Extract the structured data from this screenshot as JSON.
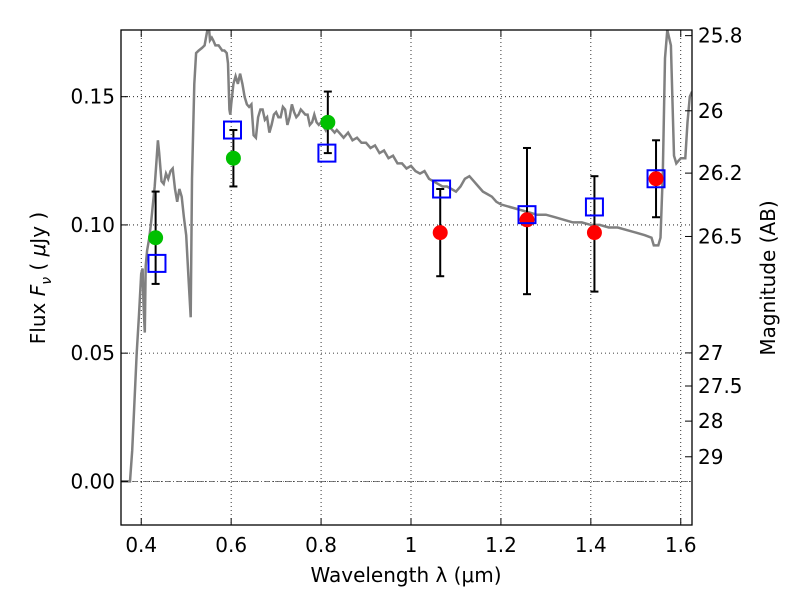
{
  "chart_data": {
    "type": "scatter",
    "xlabel": "Wavelength  λ (μm)",
    "ylabel_parts": [
      "Flux  ",
      "F",
      "ν",
      "  ( ",
      "μ",
      "Jy )"
    ],
    "ylabel_right": "Magnitude (AB)",
    "xlim": [
      0.355,
      1.625
    ],
    "ylim": [
      -0.017,
      0.176
    ],
    "grid": true,
    "x_ticks": [
      0.4,
      0.6,
      0.8,
      1.0,
      1.2,
      1.4,
      1.6
    ],
    "x_tick_labels": [
      "0.4",
      "0.6",
      "0.8",
      "1",
      "1.2",
      "1.4",
      "1.6"
    ],
    "y_ticks": [
      0.0,
      0.05,
      0.1,
      0.15
    ],
    "y_tick_labels": [
      "0.00",
      "0.05",
      "0.10",
      "0.15"
    ],
    "right_axis_magnitudes": [
      "25.8",
      "26",
      "26.2",
      "26.5",
      "27",
      "27.5",
      "28",
      "29"
    ],
    "right_axis_flux_positions": [
      0.1738,
      0.1445,
      0.1202,
      0.0955,
      0.0501,
      0.0372,
      0.0235,
      0.0096
    ],
    "model_spectrum": {
      "name": "model",
      "color": "#808080",
      "points": [
        [
          0.355,
          0.0
        ],
        [
          0.37,
          0.0
        ],
        [
          0.375,
          0.0
        ],
        [
          0.38,
          0.012
        ],
        [
          0.39,
          0.05
        ],
        [
          0.395,
          0.065
        ],
        [
          0.4,
          0.081
        ],
        [
          0.403,
          0.083
        ],
        [
          0.405,
          0.069
        ],
        [
          0.408,
          0.058
        ],
        [
          0.41,
          0.084
        ],
        [
          0.413,
          0.09
        ],
        [
          0.418,
          0.095
        ],
        [
          0.422,
          0.101
        ],
        [
          0.426,
          0.108
        ],
        [
          0.43,
          0.115
        ],
        [
          0.434,
          0.125
        ],
        [
          0.437,
          0.133
        ],
        [
          0.44,
          0.128
        ],
        [
          0.445,
          0.117
        ],
        [
          0.45,
          0.116
        ],
        [
          0.455,
          0.12
        ],
        [
          0.46,
          0.118
        ],
        [
          0.465,
          0.121
        ],
        [
          0.47,
          0.122
        ],
        [
          0.475,
          0.114
        ],
        [
          0.48,
          0.109
        ],
        [
          0.485,
          0.114
        ],
        [
          0.49,
          0.111
        ],
        [
          0.495,
          0.103
        ],
        [
          0.5,
          0.096
        ],
        [
          0.505,
          0.08
        ],
        [
          0.51,
          0.064
        ],
        [
          0.513,
          0.118
        ],
        [
          0.518,
          0.155
        ],
        [
          0.522,
          0.167
        ],
        [
          0.528,
          0.168
        ],
        [
          0.535,
          0.169
        ],
        [
          0.541,
          0.17
        ],
        [
          0.546,
          0.175
        ],
        [
          0.55,
          0.178
        ],
        [
          0.553,
          0.172
        ],
        [
          0.557,
          0.173
        ],
        [
          0.56,
          0.172
        ],
        [
          0.565,
          0.17
        ],
        [
          0.572,
          0.17
        ],
        [
          0.58,
          0.168
        ],
        [
          0.585,
          0.168
        ],
        [
          0.59,
          0.167
        ],
        [
          0.593,
          0.163
        ],
        [
          0.596,
          0.145
        ],
        [
          0.598,
          0.143
        ],
        [
          0.6,
          0.147
        ],
        [
          0.605,
          0.155
        ],
        [
          0.61,
          0.158
        ],
        [
          0.615,
          0.155
        ],
        [
          0.62,
          0.159
        ],
        [
          0.625,
          0.155
        ],
        [
          0.63,
          0.15
        ],
        [
          0.635,
          0.147
        ],
        [
          0.64,
          0.146
        ],
        [
          0.645,
          0.147
        ],
        [
          0.65,
          0.135
        ],
        [
          0.655,
          0.134
        ],
        [
          0.66,
          0.142
        ],
        [
          0.665,
          0.145
        ],
        [
          0.67,
          0.145
        ],
        [
          0.675,
          0.141
        ],
        [
          0.68,
          0.142
        ],
        [
          0.685,
          0.136
        ],
        [
          0.69,
          0.139
        ],
        [
          0.695,
          0.143
        ],
        [
          0.7,
          0.144
        ],
        [
          0.705,
          0.142
        ],
        [
          0.71,
          0.142
        ],
        [
          0.715,
          0.146
        ],
        [
          0.72,
          0.145
        ],
        [
          0.725,
          0.139
        ],
        [
          0.73,
          0.142
        ],
        [
          0.735,
          0.147
        ],
        [
          0.74,
          0.144
        ],
        [
          0.745,
          0.142
        ],
        [
          0.75,
          0.143
        ],
        [
          0.755,
          0.145
        ],
        [
          0.76,
          0.144
        ],
        [
          0.765,
          0.143
        ],
        [
          0.77,
          0.143
        ],
        [
          0.775,
          0.139
        ],
        [
          0.78,
          0.14
        ],
        [
          0.785,
          0.143
        ],
        [
          0.79,
          0.14
        ],
        [
          0.795,
          0.139
        ],
        [
          0.8,
          0.14
        ],
        [
          0.81,
          0.137
        ],
        [
          0.815,
          0.14
        ],
        [
          0.82,
          0.138
        ],
        [
          0.83,
          0.136
        ],
        [
          0.835,
          0.137
        ],
        [
          0.84,
          0.136
        ],
        [
          0.85,
          0.134
        ],
        [
          0.86,
          0.136
        ],
        [
          0.87,
          0.133
        ],
        [
          0.88,
          0.134
        ],
        [
          0.89,
          0.132
        ],
        [
          0.9,
          0.132
        ],
        [
          0.91,
          0.13
        ],
        [
          0.92,
          0.131
        ],
        [
          0.93,
          0.128
        ],
        [
          0.94,
          0.129
        ],
        [
          0.95,
          0.126
        ],
        [
          0.96,
          0.127
        ],
        [
          0.97,
          0.124
        ],
        [
          0.98,
          0.124
        ],
        [
          0.99,
          0.122
        ],
        [
          1.0,
          0.123
        ],
        [
          1.01,
          0.121
        ],
        [
          1.02,
          0.12
        ],
        [
          1.03,
          0.121
        ],
        [
          1.04,
          0.118
        ],
        [
          1.05,
          0.117
        ],
        [
          1.06,
          0.116
        ],
        [
          1.07,
          0.115
        ],
        [
          1.08,
          0.115
        ],
        [
          1.09,
          0.114
        ],
        [
          1.1,
          0.113
        ],
        [
          1.11,
          0.115
        ],
        [
          1.12,
          0.118
        ],
        [
          1.13,
          0.119
        ],
        [
          1.14,
          0.117
        ],
        [
          1.15,
          0.115
        ],
        [
          1.16,
          0.113
        ],
        [
          1.17,
          0.112
        ],
        [
          1.18,
          0.111
        ],
        [
          1.19,
          0.109
        ],
        [
          1.2,
          0.108
        ],
        [
          1.22,
          0.107
        ],
        [
          1.24,
          0.106
        ],
        [
          1.26,
          0.105
        ],
        [
          1.28,
          0.104
        ],
        [
          1.3,
          0.104
        ],
        [
          1.32,
          0.103
        ],
        [
          1.34,
          0.102
        ],
        [
          1.36,
          0.101
        ],
        [
          1.38,
          0.101
        ],
        [
          1.4,
          0.1
        ],
        [
          1.42,
          0.1
        ],
        [
          1.44,
          0.099
        ],
        [
          1.46,
          0.099
        ],
        [
          1.48,
          0.098
        ],
        [
          1.5,
          0.097
        ],
        [
          1.52,
          0.096
        ],
        [
          1.535,
          0.095
        ],
        [
          1.54,
          0.092
        ],
        [
          1.55,
          0.092
        ],
        [
          1.555,
          0.095
        ],
        [
          1.56,
          0.12
        ],
        [
          1.565,
          0.165
        ],
        [
          1.57,
          0.176
        ]
      ],
      "tail_points": [
        [
          1.57,
          0.176
        ],
        [
          1.578,
          0.17
        ],
        [
          1.585,
          0.127
        ],
        [
          1.59,
          0.124
        ],
        [
          1.595,
          0.125
        ],
        [
          1.6,
          0.126
        ],
        [
          1.605,
          0.126
        ],
        [
          1.61,
          0.126
        ],
        [
          1.615,
          0.14
        ],
        [
          1.62,
          0.15
        ],
        [
          1.625,
          0.152
        ]
      ]
    },
    "series": [
      {
        "name": "observed-detections-green",
        "color": "#00c000",
        "marker": "circle",
        "points": [
          {
            "x": 0.432,
            "y": 0.095,
            "err_low": 0.018,
            "err_high": 0.018
          },
          {
            "x": 0.605,
            "y": 0.126,
            "err_low": 0.011,
            "err_high": 0.011
          },
          {
            "x": 0.815,
            "y": 0.14,
            "err_low": 0.012,
            "err_high": 0.012
          }
        ]
      },
      {
        "name": "observed-nir-red",
        "color": "#ff0000",
        "marker": "circle",
        "points": [
          {
            "x": 1.065,
            "y": 0.097,
            "err_low": 0.017,
            "err_high": 0.017
          },
          {
            "x": 1.258,
            "y": 0.102,
            "err_low": 0.029,
            "err_high": 0.028
          },
          {
            "x": 1.408,
            "y": 0.097,
            "err_low": 0.023,
            "err_high": 0.022
          },
          {
            "x": 1.545,
            "y": 0.118,
            "err_low": 0.015,
            "err_high": 0.015
          }
        ]
      },
      {
        "name": "model-synthetic-photometry",
        "color": "#0000ff",
        "marker": "open-square",
        "points": [
          {
            "x": 0.435,
            "y": 0.085
          },
          {
            "x": 0.603,
            "y": 0.137
          },
          {
            "x": 0.813,
            "y": 0.128
          },
          {
            "x": 1.068,
            "y": 0.114
          },
          {
            "x": 1.258,
            "y": 0.104
          },
          {
            "x": 1.408,
            "y": 0.107
          },
          {
            "x": 1.545,
            "y": 0.118
          }
        ]
      }
    ]
  }
}
